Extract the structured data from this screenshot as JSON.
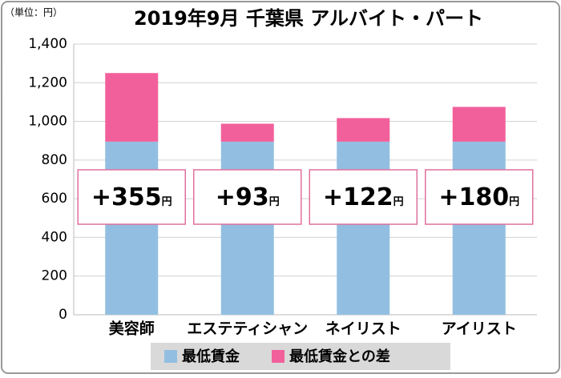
{
  "chart_data": {
    "type": "stacked_bar",
    "title": "2019年9月 千葉県 アルバイト・パート",
    "y_unit_label": "（単位：円）",
    "categories": [
      "美容師",
      "エステティシャン",
      "ネイリスト",
      "アイリスト"
    ],
    "series": [
      {
        "name": "最低賃金",
        "color": "#92bfe1",
        "values": [
          895,
          895,
          895,
          895
        ]
      },
      {
        "name": "最低賃金との差",
        "color": "#f2609b",
        "values": [
          355,
          93,
          122,
          180
        ],
        "value_labels": [
          "+355",
          "+93",
          "+122",
          "+180"
        ],
        "value_label_unit": "円"
      }
    ],
    "ylim": [
      0,
      1400
    ],
    "yticks": [
      0,
      {
        "value": 200,
        "label": "200"
      },
      400,
      600,
      800,
      {
        "value": 1000,
        "label": "1,000"
      },
      {
        "value": 1200,
        "label": "1,200"
      },
      {
        "value": 1400,
        "label": "1,400"
      }
    ],
    "grid": true
  }
}
